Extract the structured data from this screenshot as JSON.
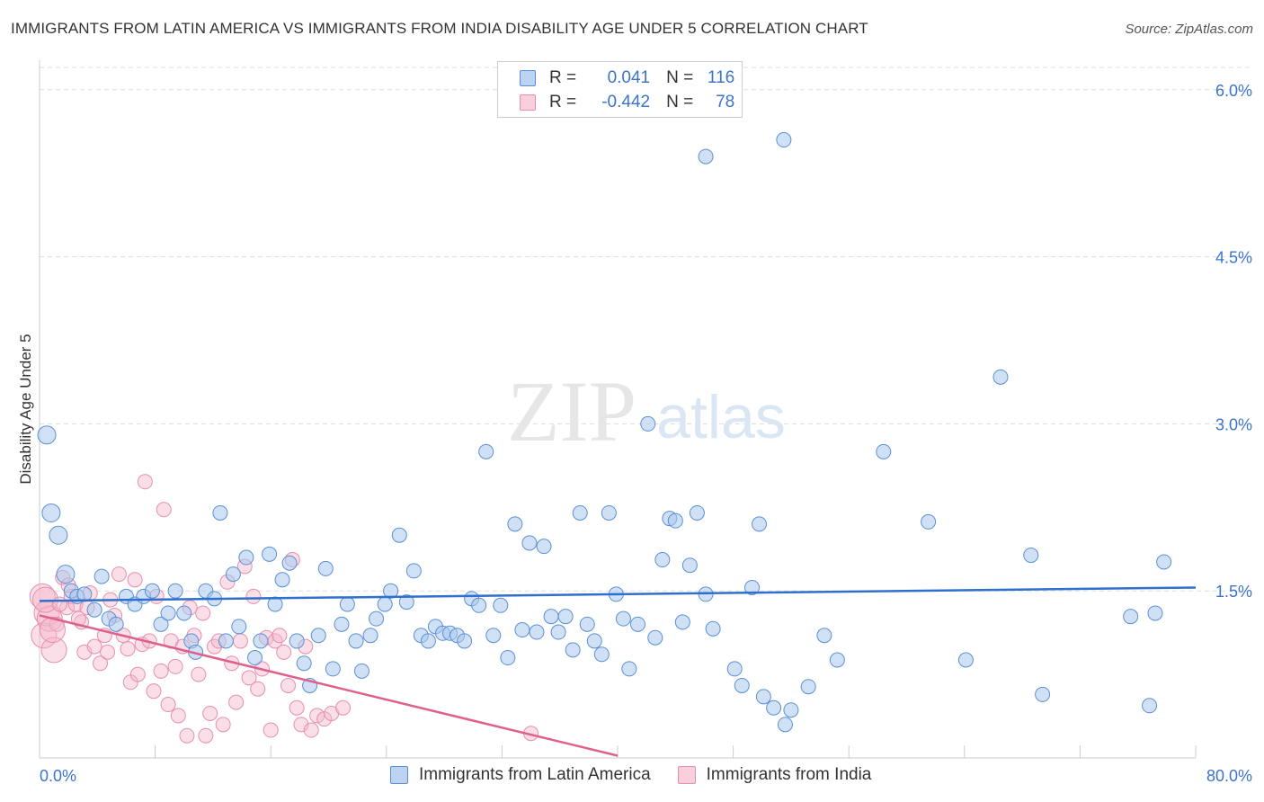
{
  "title": "IMMIGRANTS FROM LATIN AMERICA VS IMMIGRANTS FROM INDIA DISABILITY AGE UNDER 5 CORRELATION CHART",
  "source": "Source: ZipAtlas.com",
  "watermark": {
    "zip": "ZIP",
    "atlas": "atlas"
  },
  "colors": {
    "blue_fill": "#a9c8ee",
    "blue_stroke": "#5b8fd4",
    "blue_line": "#2f6fce",
    "pink_fill": "#f4b9cb",
    "pink_stroke": "#e78fab",
    "pink_line": "#e0608d",
    "tick_label": "#3b74c9",
    "grid": "#dddddd"
  },
  "legend_top": {
    "rows": [
      {
        "r_label": "R =",
        "r_value": "0.041",
        "n_label": "N =",
        "n_value": "116"
      },
      {
        "r_label": "R =",
        "r_value": "-0.442",
        "n_label": "N =",
        "n_value": "78"
      }
    ]
  },
  "legend_bottom": [
    "Immigrants from Latin America",
    "Immigrants from India"
  ],
  "chart_data": {
    "type": "scatter",
    "title": "IMMIGRANTS FROM LATIN AMERICA VS IMMIGRANTS FROM INDIA DISABILITY AGE UNDER 5 CORRELATION CHART",
    "xlabel": "",
    "ylabel": "Disability Age Under 5",
    "xlim": [
      0,
      80
    ],
    "ylim": [
      0,
      6.2
    ],
    "x_tick_labels": [
      "0.0%",
      "80.0%"
    ],
    "y_ticks": [
      1.5,
      3.0,
      4.5,
      6.0
    ],
    "y_tick_labels": [
      "1.5%",
      "3.0%",
      "4.5%",
      "6.0%"
    ],
    "grid": "horizontal dashed",
    "legend_position": "top-center",
    "series": [
      {
        "name": "Immigrants from Latin America",
        "R": 0.041,
        "N": 116,
        "trend": [
          [
            0,
            1.41
          ],
          [
            80,
            1.53
          ]
        ],
        "points": [
          [
            0.5,
            2.9
          ],
          [
            0.8,
            2.2
          ],
          [
            1.3,
            2.0
          ],
          [
            1.8,
            1.65
          ],
          [
            2.2,
            1.5
          ],
          [
            2.6,
            1.45
          ],
          [
            3.1,
            1.47
          ],
          [
            3.8,
            1.33
          ],
          [
            4.3,
            1.63
          ],
          [
            4.8,
            1.25
          ],
          [
            5.3,
            1.2
          ],
          [
            6.0,
            1.45
          ],
          [
            6.6,
            1.38
          ],
          [
            7.2,
            1.45
          ],
          [
            7.8,
            1.5
          ],
          [
            8.4,
            1.2
          ],
          [
            8.9,
            1.3
          ],
          [
            9.4,
            1.5
          ],
          [
            10.0,
            1.3
          ],
          [
            10.5,
            1.05
          ],
          [
            10.8,
            0.95
          ],
          [
            11.5,
            1.5
          ],
          [
            12.1,
            1.43
          ],
          [
            12.5,
            2.2
          ],
          [
            12.9,
            1.05
          ],
          [
            13.4,
            1.65
          ],
          [
            13.8,
            1.18
          ],
          [
            14.3,
            1.8
          ],
          [
            14.9,
            0.9
          ],
          [
            15.3,
            1.05
          ],
          [
            15.9,
            1.83
          ],
          [
            16.3,
            1.38
          ],
          [
            16.8,
            1.6
          ],
          [
            17.3,
            1.75
          ],
          [
            17.8,
            1.05
          ],
          [
            18.3,
            0.85
          ],
          [
            18.7,
            0.65
          ],
          [
            19.3,
            1.1
          ],
          [
            19.8,
            1.7
          ],
          [
            20.3,
            0.8
          ],
          [
            20.9,
            1.2
          ],
          [
            21.3,
            1.38
          ],
          [
            21.9,
            1.05
          ],
          [
            22.3,
            0.78
          ],
          [
            22.9,
            1.1
          ],
          [
            23.3,
            1.25
          ],
          [
            23.9,
            1.38
          ],
          [
            24.3,
            1.5
          ],
          [
            24.9,
            2.0
          ],
          [
            25.4,
            1.4
          ],
          [
            25.9,
            1.68
          ],
          [
            26.4,
            1.1
          ],
          [
            26.9,
            1.05
          ],
          [
            27.4,
            1.18
          ],
          [
            27.9,
            1.12
          ],
          [
            28.4,
            1.12
          ],
          [
            28.9,
            1.1
          ],
          [
            29.4,
            1.05
          ],
          [
            29.9,
            1.43
          ],
          [
            30.4,
            1.37
          ],
          [
            30.9,
            2.75
          ],
          [
            31.4,
            1.1
          ],
          [
            31.9,
            1.37
          ],
          [
            32.4,
            0.9
          ],
          [
            32.9,
            2.1
          ],
          [
            33.4,
            1.15
          ],
          [
            33.9,
            1.93
          ],
          [
            34.4,
            1.13
          ],
          [
            34.9,
            1.9
          ],
          [
            35.4,
            1.27
          ],
          [
            35.9,
            1.13
          ],
          [
            36.4,
            1.27
          ],
          [
            36.9,
            0.97
          ],
          [
            37.4,
            2.2
          ],
          [
            37.9,
            1.2
          ],
          [
            38.4,
            1.05
          ],
          [
            38.9,
            0.93
          ],
          [
            39.4,
            2.2
          ],
          [
            39.9,
            1.47
          ],
          [
            40.4,
            1.25
          ],
          [
            40.8,
            0.8
          ],
          [
            41.4,
            1.2
          ],
          [
            42.1,
            3.0
          ],
          [
            42.6,
            1.08
          ],
          [
            43.1,
            1.78
          ],
          [
            43.6,
            2.15
          ],
          [
            44.0,
            2.13
          ],
          [
            44.5,
            1.22
          ],
          [
            45.0,
            1.73
          ],
          [
            45.5,
            2.2
          ],
          [
            46.1,
            1.47
          ],
          [
            46.6,
            1.16
          ],
          [
            46.1,
            5.4
          ],
          [
            48.1,
            0.8
          ],
          [
            48.6,
            0.65
          ],
          [
            49.3,
            1.53
          ],
          [
            49.8,
            2.1
          ],
          [
            50.1,
            0.55
          ],
          [
            50.8,
            0.45
          ],
          [
            51.5,
            5.55
          ],
          [
            51.6,
            0.3
          ],
          [
            52.0,
            0.43
          ],
          [
            53.2,
            0.64
          ],
          [
            54.3,
            1.1
          ],
          [
            55.2,
            0.88
          ],
          [
            58.4,
            2.75
          ],
          [
            61.5,
            2.12
          ],
          [
            64.1,
            0.88
          ],
          [
            66.5,
            3.42
          ],
          [
            68.6,
            1.82
          ],
          [
            69.4,
            0.57
          ],
          [
            75.5,
            1.27
          ],
          [
            77.2,
            1.3
          ],
          [
            77.8,
            1.76
          ],
          [
            76.8,
            0.47
          ]
        ]
      },
      {
        "name": "Immigrants from India",
        "R": -0.442,
        "N": 78,
        "trend": [
          [
            0,
            1.28
          ],
          [
            40,
            0.02
          ]
        ],
        "points": [
          [
            0.2,
            1.45
          ],
          [
            0.3,
            1.1
          ],
          [
            0.5,
            1.3
          ],
          [
            0.7,
            1.25
          ],
          [
            1.0,
            0.97
          ],
          [
            1.2,
            1.2
          ],
          [
            1.6,
            1.62
          ],
          [
            1.9,
            1.35
          ],
          [
            2.2,
            1.45
          ],
          [
            2.5,
            1.38
          ],
          [
            2.9,
            1.22
          ],
          [
            3.1,
            0.95
          ],
          [
            3.5,
            1.48
          ],
          [
            3.8,
            1.0
          ],
          [
            4.2,
            0.85
          ],
          [
            4.5,
            1.1
          ],
          [
            4.9,
            1.42
          ],
          [
            5.2,
            1.28
          ],
          [
            5.5,
            1.65
          ],
          [
            5.8,
            1.1
          ],
          [
            6.1,
            0.98
          ],
          [
            6.3,
            0.68
          ],
          [
            6.6,
            1.6
          ],
          [
            6.8,
            0.75
          ],
          [
            7.1,
            1.02
          ],
          [
            7.3,
            2.48
          ],
          [
            7.6,
            1.05
          ],
          [
            7.9,
            0.6
          ],
          [
            8.1,
            1.45
          ],
          [
            8.4,
            0.78
          ],
          [
            8.6,
            2.23
          ],
          [
            8.9,
            0.48
          ],
          [
            9.1,
            1.05
          ],
          [
            9.4,
            0.82
          ],
          [
            9.6,
            0.38
          ],
          [
            9.9,
            1.0
          ],
          [
            10.2,
            0.2
          ],
          [
            10.4,
            1.35
          ],
          [
            10.7,
            1.1
          ],
          [
            11.0,
            0.75
          ],
          [
            11.3,
            1.3
          ],
          [
            11.5,
            0.2
          ],
          [
            11.8,
            0.4
          ],
          [
            12.1,
            1.0
          ],
          [
            12.4,
            1.05
          ],
          [
            12.7,
            0.3
          ],
          [
            13.0,
            1.58
          ],
          [
            13.3,
            0.85
          ],
          [
            13.6,
            0.5
          ],
          [
            13.9,
            1.05
          ],
          [
            14.2,
            1.72
          ],
          [
            14.5,
            0.72
          ],
          [
            14.8,
            1.45
          ],
          [
            15.1,
            0.62
          ],
          [
            15.4,
            0.8
          ],
          [
            15.7,
            1.08
          ],
          [
            16.0,
            0.25
          ],
          [
            16.3,
            1.05
          ],
          [
            16.6,
            1.1
          ],
          [
            16.9,
            0.95
          ],
          [
            17.2,
            0.65
          ],
          [
            17.5,
            1.78
          ],
          [
            17.8,
            0.45
          ],
          [
            18.1,
            0.3
          ],
          [
            18.4,
            1.0
          ],
          [
            18.8,
            0.25
          ],
          [
            19.2,
            0.38
          ],
          [
            19.7,
            0.35
          ],
          [
            20.2,
            0.4
          ],
          [
            21.0,
            0.45
          ],
          [
            34.0,
            0.22
          ],
          [
            0.4,
            1.42
          ],
          [
            0.9,
            1.15
          ],
          [
            1.4,
            1.38
          ],
          [
            2.0,
            1.55
          ],
          [
            2.7,
            1.25
          ],
          [
            3.3,
            1.35
          ],
          [
            4.7,
            0.95
          ]
        ]
      }
    ]
  }
}
